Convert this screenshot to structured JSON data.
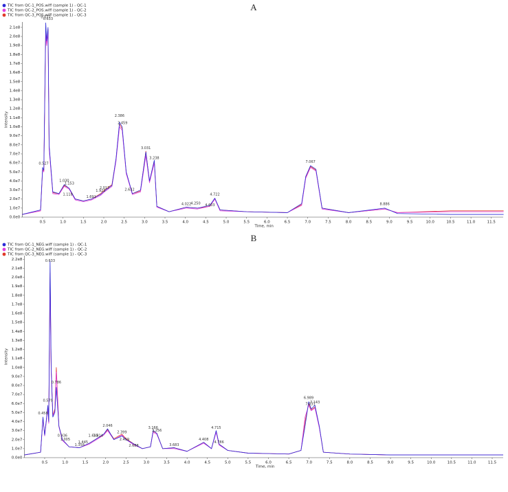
{
  "chart_data": [
    {
      "type": "line",
      "title": "A",
      "ylabel": "Intensity",
      "xlabel": "Time, min",
      "x": [
        0,
        0.45,
        0.5,
        0.53,
        0.577,
        0.6,
        0.633,
        0.66,
        0.75,
        0.9,
        1.03,
        1.15,
        1.3,
        1.5,
        1.7,
        1.92,
        2.017,
        2.2,
        2.3,
        2.386,
        2.45,
        2.55,
        2.7,
        2.9,
        3.031,
        3.12,
        3.238,
        3.3,
        3.6,
        4.022,
        4.3,
        4.6,
        4.722,
        4.85,
        5.5,
        6.5,
        6.85,
        6.95,
        7.067,
        7.2,
        7.35,
        8.0,
        8.886,
        9.2,
        10.5,
        11.8
      ],
      "series": [
        {
          "name": "TIC from QC-1_POS.wiff (sample 1) - QC-1",
          "color": "#2a2ad6",
          "values": [
            3000000.0,
            8000000.0,
            55000000.0,
            52000000.0,
            215000000.0,
            195000000.0,
            210000000.0,
            80000000.0,
            28000000.0,
            26000000.0,
            36000000.0,
            32000000.0,
            20000000.0,
            18000000.0,
            20000000.0,
            25000000.0,
            29000000.0,
            35000000.0,
            65000000.0,
            105000000.0,
            100000000.0,
            50000000.0,
            26000000.0,
            30000000.0,
            72000000.0,
            40000000.0,
            63000000.0,
            12000000.0,
            6000000.0,
            11000000.0,
            10000000.0,
            13000000.0,
            21000000.0,
            8000000.0,
            6000000.0,
            5000000.0,
            15000000.0,
            45000000.0,
            57000000.0,
            53000000.0,
            10000000.0,
            5000000.0,
            10000000.0,
            4000000.0,
            3000000.0,
            3000000.0
          ]
        },
        {
          "name": "TIC from QC-2_POS.wiff (sample 1) - QC-2",
          "color": "#e040e0",
          "values": [
            3000000.0,
            7000000.0,
            52000000.0,
            50000000.0,
            205000000.0,
            190000000.0,
            205000000.0,
            75000000.0,
            26000000.0,
            25000000.0,
            34000000.0,
            31000000.0,
            19000000.0,
            17000000.0,
            19000000.0,
            24000000.0,
            28000000.0,
            34000000.0,
            62000000.0,
            100000000.0,
            96000000.0,
            48000000.0,
            25000000.0,
            28000000.0,
            68000000.0,
            38000000.0,
            60000000.0,
            11000000.0,
            6000000.0,
            10000000.0,
            9000000.0,
            12000000.0,
            20000000.0,
            7000000.0,
            6000000.0,
            5000000.0,
            13000000.0,
            43000000.0,
            55000000.0,
            51000000.0,
            9000000.0,
            5000000.0,
            9000000.0,
            5000000.0,
            6000000.0,
            6000000.0
          ]
        },
        {
          "name": "TIC from QC-3_POS.wiff (sample 1) - QC-3",
          "color": "#e03a2a",
          "values": [
            3000000.0,
            7000000.0,
            53000000.0,
            51000000.0,
            210000000.0,
            190000000.0,
            208000000.0,
            78000000.0,
            27000000.0,
            26000000.0,
            35000000.0,
            32000000.0,
            20000000.0,
            18000000.0,
            20000000.0,
            26000000.0,
            30000000.0,
            36000000.0,
            64000000.0,
            103000000.0,
            98000000.0,
            49000000.0,
            26000000.0,
            29000000.0,
            73000000.0,
            39000000.0,
            62000000.0,
            12000000.0,
            6000000.0,
            11000000.0,
            10000000.0,
            12000000.0,
            20000000.0,
            8000000.0,
            6000000.0,
            5000000.0,
            14000000.0,
            44000000.0,
            56000000.0,
            52000000.0,
            10000000.0,
            5000000.0,
            9000000.0,
            5000000.0,
            7000000.0,
            7000000.0
          ]
        }
      ],
      "annotations": [
        {
          "x": 0.577,
          "y": 219000000.0,
          "label": "0.577"
        },
        {
          "x": 0.633,
          "y": 217000000.0,
          "label": "0.633"
        },
        {
          "x": 0.527,
          "y": 57000000.0,
          "label": "0.527"
        },
        {
          "x": 1.03,
          "y": 38000000.0,
          "label": "1.030"
        },
        {
          "x": 1.153,
          "y": 35000000.0,
          "label": "1.153"
        },
        {
          "x": 1.118,
          "y": 23000000.0,
          "label": "1.118"
        },
        {
          "x": 1.691,
          "y": 20000000.0,
          "label": "1.691"
        },
        {
          "x": 1.922,
          "y": 27000000.0,
          "label": "1.922"
        },
        {
          "x": 2.017,
          "y": 30000000.0,
          "label": "2.017"
        },
        {
          "x": 2.386,
          "y": 110000000.0,
          "label": "2.386"
        },
        {
          "x": 2.459,
          "y": 102000000.0,
          "label": "2.459"
        },
        {
          "x": 2.632,
          "y": 28000000.0,
          "label": "2.632"
        },
        {
          "x": 3.031,
          "y": 74000000.0,
          "label": "3.031"
        },
        {
          "x": 3.238,
          "y": 63000000.0,
          "label": "3.238"
        },
        {
          "x": 4.022,
          "y": 12000000.0,
          "label": "4.022"
        },
        {
          "x": 4.25,
          "y": 13000000.0,
          "label": "4.250"
        },
        {
          "x": 4.603,
          "y": 11000000.0,
          "label": "4.603"
        },
        {
          "x": 4.722,
          "y": 23000000.0,
          "label": "4.722"
        },
        {
          "x": 7.067,
          "y": 59000000.0,
          "label": "7.067"
        },
        {
          "x": 8.886,
          "y": 12000000.0,
          "label": "8.886"
        }
      ],
      "xlim": [
        0,
        11.79
      ],
      "ylim": [
        0,
        216000000.0
      ],
      "xticks": [
        0.5,
        {
          "value": 1,
          "label": "1.0"
        },
        1.5,
        {
          "value": 2,
          "label": "2.0"
        },
        2.5,
        {
          "value": 3,
          "label": "3.0"
        },
        3.5,
        {
          "value": 4,
          "label": "4.0"
        },
        4.5,
        {
          "value": 5,
          "label": "5.0"
        },
        5.5,
        {
          "value": 6,
          "label": "6.0"
        },
        6.5,
        {
          "value": 7,
          "label": "7.0"
        },
        7.5,
        {
          "value": 8,
          "label": "8.0"
        },
        8.5,
        {
          "value": 9,
          "label": "9.0"
        },
        9.5,
        {
          "value": 10,
          "label": "10.0"
        },
        10.5,
        {
          "value": 11,
          "label": "11.0"
        },
        11.5
      ],
      "yticks": [
        {
          "value": 0,
          "label": "0.0e0"
        },
        {
          "value": 10000000.0,
          "label": "1.0e7"
        },
        {
          "value": 20000000.0,
          "label": "2.0e7"
        },
        {
          "value": 30000000.0,
          "label": "3.0e7"
        },
        {
          "value": 40000000.0,
          "label": "4.0e7"
        },
        {
          "value": 50000000.0,
          "label": "5.0e7"
        },
        {
          "value": 60000000.0,
          "label": "6.0e7"
        },
        {
          "value": 70000000.0,
          "label": "7.0e7"
        },
        {
          "value": 80000000.0,
          "label": "8.0e7"
        },
        {
          "value": 90000000.0,
          "label": "9.0e7"
        },
        {
          "value": 100000000.0,
          "label": "1.0e8"
        },
        {
          "value": 110000000.0,
          "label": "1.1e8"
        },
        {
          "value": 120000000.0,
          "label": "1.2e8"
        },
        {
          "value": 130000000.0,
          "label": "1.3e8"
        },
        {
          "value": 140000000.0,
          "label": "1.4e8"
        },
        {
          "value": 150000000.0,
          "label": "1.5e8"
        },
        {
          "value": 160000000.0,
          "label": "1.6e8"
        },
        {
          "value": 170000000.0,
          "label": "1.7e8"
        },
        {
          "value": 180000000.0,
          "label": "1.8e8"
        },
        {
          "value": 190000000.0,
          "label": "1.9e8"
        },
        {
          "value": 200000000.0,
          "label": "2.0e8"
        },
        {
          "value": 210000000.0,
          "label": "2.1e8"
        }
      ]
    },
    {
      "type": "line",
      "title": "B",
      "ylabel": "Intensity",
      "xlabel": "Time, min",
      "x": [
        0,
        0.4,
        0.458,
        0.5,
        0.579,
        0.6,
        0.633,
        0.66,
        0.7,
        0.75,
        0.786,
        0.85,
        0.936,
        1.1,
        1.358,
        1.6,
        1.814,
        1.95,
        2.046,
        2.2,
        2.399,
        2.5,
        2.7,
        2.9,
        3.1,
        3.166,
        3.256,
        3.4,
        3.683,
        4.0,
        4.408,
        4.6,
        4.715,
        4.786,
        5.0,
        5.5,
        6.5,
        6.8,
        6.9,
        6.989,
        7.05,
        7.143,
        7.25,
        7.35,
        8.0,
        9.0,
        10.5,
        11.77
      ],
      "series": [
        {
          "name": "TIC from QC-1_NEG.wiff (sample 1) - QC-1",
          "color": "#2a2ad6",
          "values": [
            3000000.0,
            6000000.0,
            45000000.0,
            25000000.0,
            58000000.0,
            40000000.0,
            218000000.0,
            100000000.0,
            45000000.0,
            50000000.0,
            78000000.0,
            35000000.0,
            20000000.0,
            12000000.0,
            11000000.0,
            16000000.0,
            22000000.0,
            26000000.0,
            32000000.0,
            20000000.0,
            24000000.0,
            20000000.0,
            15000000.0,
            10000000.0,
            12000000.0,
            30000000.0,
            27000000.0,
            10000000.0,
            11000000.0,
            7000000.0,
            17000000.0,
            10000000.0,
            30000000.0,
            15000000.0,
            8000000.0,
            5000000.0,
            4000000.0,
            8000000.0,
            35000000.0,
            62000000.0,
            54000000.0,
            58000000.0,
            35000000.0,
            6000000.0,
            4000000.0,
            3000000.0,
            3000000.0,
            3000000.0
          ]
        },
        {
          "name": "TIC from QC-2_NEG.wiff (sample 1) - QC-2",
          "color": "#e040e0",
          "values": [
            3000000.0,
            6000000.0,
            43000000.0,
            24000000.0,
            55000000.0,
            38000000.0,
            200000000.0,
            95000000.0,
            46000000.0,
            52000000.0,
            95000000.0,
            34000000.0,
            19000000.0,
            12000000.0,
            11000000.0,
            15000000.0,
            21000000.0,
            25000000.0,
            30000000.0,
            20000000.0,
            25000000.0,
            20000000.0,
            14000000.0,
            10000000.0,
            12000000.0,
            28000000.0,
            26000000.0,
            10000000.0,
            10000000.0,
            7000000.0,
            16000000.0,
            10000000.0,
            28000000.0,
            14000000.0,
            8000000.0,
            5000000.0,
            4000000.0,
            8000000.0,
            45000000.0,
            58000000.0,
            52000000.0,
            55000000.0,
            33000000.0,
            6000000.0,
            4000000.0,
            3000000.0,
            3000000.0,
            3000000.0
          ]
        },
        {
          "name": "TIC from QC-3_NEG.wiff (sample 1) - QC-3",
          "color": "#e03a2a",
          "values": [
            3000000.0,
            6000000.0,
            44000000.0,
            25000000.0,
            56000000.0,
            39000000.0,
            205000000.0,
            98000000.0,
            47000000.0,
            54000000.0,
            100000000.0,
            35000000.0,
            20000000.0,
            12000000.0,
            11000000.0,
            16000000.0,
            22000000.0,
            25000000.0,
            31000000.0,
            21000000.0,
            26000000.0,
            21000000.0,
            15000000.0,
            10000000.0,
            12000000.0,
            29000000.0,
            27000000.0,
            10000000.0,
            11000000.0,
            7000000.0,
            17000000.0,
            10000000.0,
            29000000.0,
            15000000.0,
            8000000.0,
            5000000.0,
            4000000.0,
            8000000.0,
            40000000.0,
            60000000.0,
            53000000.0,
            56000000.0,
            34000000.0,
            6000000.0,
            4000000.0,
            3000000.0,
            3000000.0,
            3000000.0
          ]
        }
      ],
      "annotations": [
        {
          "x": 0.633,
          "y": 216000000.0,
          "label": "0.633"
        },
        {
          "x": 0.579,
          "y": 61000000.0,
          "label": "0.579"
        },
        {
          "x": 0.458,
          "y": 47000000.0,
          "label": "0.458"
        },
        {
          "x": 0.786,
          "y": 81000000.0,
          "label": "0.786"
        },
        {
          "x": 0.936,
          "y": 22000000.0,
          "label": "0.936"
        },
        {
          "x": 1.005,
          "y": 18000000.0,
          "label": "1.005"
        },
        {
          "x": 1.358,
          "y": 12000000.0,
          "label": "1.358"
        },
        {
          "x": 1.445,
          "y": 15000000.0,
          "label": "1.445"
        },
        {
          "x": 1.695,
          "y": 22000000.0,
          "label": "1.695"
        },
        {
          "x": 1.814,
          "y": 22000000.0,
          "label": "1.814"
        },
        {
          "x": 2.046,
          "y": 33000000.0,
          "label": "2.046"
        },
        {
          "x": 2.399,
          "y": 26000000.0,
          "label": "2.399"
        },
        {
          "x": 2.459,
          "y": 18000000.0,
          "label": "2.459"
        },
        {
          "x": 2.688,
          "y": 11000000.0,
          "label": "2.688"
        },
        {
          "x": 3.166,
          "y": 31000000.0,
          "label": "3.166"
        },
        {
          "x": 3.256,
          "y": 28000000.0,
          "label": "3.256"
        },
        {
          "x": 3.683,
          "y": 12000000.0,
          "label": "3.683"
        },
        {
          "x": 4.408,
          "y": 18000000.0,
          "label": "4.408"
        },
        {
          "x": 4.715,
          "y": 31000000.0,
          "label": "4.715"
        },
        {
          "x": 4.786,
          "y": 15000000.0,
          "label": "4.786"
        },
        {
          "x": 6.989,
          "y": 64000000.0,
          "label": "6.989"
        },
        {
          "x": 7.031,
          "y": 57000000.0,
          "label": "7.031"
        },
        {
          "x": 7.143,
          "y": 59000000.0,
          "label": "7.143"
        }
      ],
      "xlim": [
        0,
        11.77
      ],
      "ylim": [
        0,
        224000000.0
      ],
      "xticks": [
        0.5,
        {
          "value": 1,
          "label": "1.0"
        },
        1.5,
        {
          "value": 2,
          "label": "2.0"
        },
        2.5,
        {
          "value": 3,
          "label": "3.0"
        },
        3.5,
        {
          "value": 4,
          "label": "4.0"
        },
        4.5,
        {
          "value": 5,
          "label": "5.0"
        },
        5.5,
        {
          "value": 6,
          "label": "6.0"
        },
        6.5,
        {
          "value": 7,
          "label": "7.0"
        },
        7.5,
        {
          "value": 8,
          "label": "8.0"
        },
        8.5,
        {
          "value": 9,
          "label": "9.0"
        },
        9.5,
        {
          "value": 10,
          "label": "10.0"
        },
        10.5,
        {
          "value": 11,
          "label": "11.0"
        },
        11.5
      ],
      "yticks": [
        {
          "value": 0,
          "label": "0.0e0"
        },
        {
          "value": 10000000.0,
          "label": "1.0e7"
        },
        {
          "value": 20000000.0,
          "label": "2.0e7"
        },
        {
          "value": 30000000.0,
          "label": "3.0e7"
        },
        {
          "value": 40000000.0,
          "label": "4.0e7"
        },
        {
          "value": 50000000.0,
          "label": "5.0e7"
        },
        {
          "value": 60000000.0,
          "label": "6.0e7"
        },
        {
          "value": 70000000.0,
          "label": "7.0e7"
        },
        {
          "value": 80000000.0,
          "label": "8.0e7"
        },
        {
          "value": 90000000.0,
          "label": "9.0e7"
        },
        {
          "value": 100000000.0,
          "label": "1.0e8"
        },
        {
          "value": 110000000.0,
          "label": "1.1e8"
        },
        {
          "value": 120000000.0,
          "label": "1.2e8"
        },
        {
          "value": 130000000.0,
          "label": "1.3e8"
        },
        {
          "value": 140000000.0,
          "label": "1.4e8"
        },
        {
          "value": 150000000.0,
          "label": "1.5e8"
        },
        {
          "value": 160000000.0,
          "label": "1.6e8"
        },
        {
          "value": 170000000.0,
          "label": "1.7e8"
        },
        {
          "value": 180000000.0,
          "label": "1.8e8"
        },
        {
          "value": 190000000.0,
          "label": "1.9e8"
        },
        {
          "value": 200000000.0,
          "label": "2.0e8"
        },
        {
          "value": 210000000.0,
          "label": "2.1e8"
        },
        {
          "value": 220000000.0,
          "label": "2.2e8"
        }
      ]
    }
  ]
}
